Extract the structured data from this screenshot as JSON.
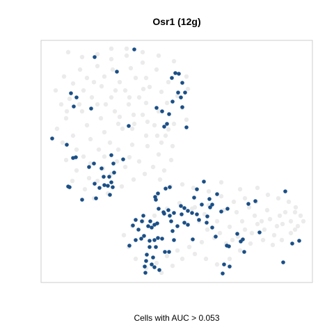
{
  "chart_data": {
    "type": "scatter",
    "title": "Osr1 (12g)",
    "xlabel": "Cells with AUC > 0.053",
    "ylabel": "",
    "colors": {
      "highlight": "#1b4f86",
      "background": "#ebebeb",
      "frame": "#cccccc"
    },
    "series": [
      {
        "name": "",
        "color": "#ebebeb",
        "points": [
          [
            98,
            75
          ],
          [
            118,
            82
          ],
          [
            140,
            78
          ],
          [
            160,
            85
          ],
          [
            182,
            80
          ],
          [
            205,
            90
          ],
          [
            225,
            100
          ],
          [
            210,
            112
          ],
          [
            188,
            98
          ],
          [
            162,
            100
          ],
          [
            140,
            95
          ],
          [
            115,
            100
          ],
          [
            92,
            110
          ],
          [
            80,
            130
          ],
          [
            88,
            150
          ],
          [
            100,
            142
          ],
          [
            120,
            130
          ],
          [
            135,
            118
          ],
          [
            150,
            110
          ],
          [
            172,
            118
          ],
          [
            195,
            112
          ],
          [
            215,
            125
          ],
          [
            200,
            140
          ],
          [
            180,
            130
          ],
          [
            160,
            140
          ],
          [
            140,
            150
          ],
          [
            118,
            160
          ],
          [
            95,
            170
          ],
          [
            82,
            185
          ],
          [
            90,
            205
          ],
          [
            105,
            195
          ],
          [
            125,
            180
          ],
          [
            145,
            170
          ],
          [
            165,
            160
          ],
          [
            185,
            150
          ],
          [
            205,
            165
          ],
          [
            222,
            180
          ],
          [
            210,
            195
          ],
          [
            190,
            185
          ],
          [
            170,
            178
          ],
          [
            150,
            190
          ],
          [
            130,
            200
          ],
          [
            110,
            215
          ],
          [
            95,
            230
          ],
          [
            110,
            245
          ],
          [
            130,
            235
          ],
          [
            150,
            225
          ],
          [
            170,
            215
          ],
          [
            190,
            208
          ],
          [
            212,
            210
          ],
          [
            228,
            222
          ],
          [
            220,
            240
          ],
          [
            200,
            232
          ],
          [
            180,
            240
          ],
          [
            160,
            250
          ],
          [
            140,
            260
          ],
          [
            122,
            272
          ],
          [
            135,
            285
          ],
          [
            155,
            278
          ],
          [
            175,
            268
          ],
          [
            192,
            258
          ],
          [
            208,
            250
          ],
          [
            230,
            258
          ],
          [
            245,
            268
          ],
          [
            262,
            265
          ],
          [
            278,
            270
          ],
          [
            300,
            275
          ],
          [
            318,
            282
          ],
          [
            336,
            290
          ],
          [
            352,
            285
          ],
          [
            368,
            290
          ],
          [
            385,
            280
          ],
          [
            400,
            285
          ],
          [
            415,
            290
          ],
          [
            425,
            298
          ],
          [
            432,
            310
          ],
          [
            428,
            325
          ],
          [
            418,
            335
          ],
          [
            405,
            345
          ],
          [
            392,
            352
          ],
          [
            378,
            345
          ],
          [
            360,
            350
          ],
          [
            342,
            340
          ],
          [
            325,
            350
          ],
          [
            308,
            342
          ],
          [
            290,
            348
          ],
          [
            272,
            355
          ],
          [
            255,
            360
          ],
          [
            240,
            368
          ],
          [
            225,
            378
          ],
          [
            210,
            385
          ],
          [
            195,
            372
          ],
          [
            185,
            355
          ],
          [
            178,
            338
          ],
          [
            190,
            325
          ],
          [
            205,
            318
          ],
          [
            222,
            310
          ],
          [
            240,
            300
          ],
          [
            258,
            292
          ],
          [
            276,
            300
          ],
          [
            294,
            308
          ],
          [
            312,
            318
          ],
          [
            330,
            326
          ],
          [
            348,
            318
          ],
          [
            366,
            310
          ],
          [
            384,
            302
          ],
          [
            402,
            310
          ],
          [
            418,
            318
          ],
          [
            398,
            325
          ],
          [
            380,
            330
          ],
          [
            362,
            335
          ],
          [
            345,
            360
          ],
          [
            330,
            372
          ],
          [
            312,
            380
          ],
          [
            296,
            372
          ],
          [
            280,
            365
          ],
          [
            262,
            372
          ],
          [
            248,
            382
          ],
          [
            232,
            392
          ],
          [
            300,
            295
          ],
          [
            322,
            302
          ],
          [
            340,
            305
          ],
          [
            358,
            298
          ],
          [
            376,
            318
          ],
          [
            394,
            338
          ],
          [
            410,
            305
          ],
          [
            424,
            305
          ],
          [
            370,
            270
          ],
          [
            345,
            272
          ],
          [
            318,
            262
          ],
          [
            240,
            148
          ],
          [
            232,
            132
          ],
          [
            242,
            118
          ],
          [
            255,
            138
          ],
          [
            262,
            155
          ],
          [
            268,
            172
          ],
          [
            250,
            178
          ],
          [
            238,
            195
          ],
          [
            228,
            160
          ],
          [
            210,
            148
          ],
          [
            192,
            165
          ],
          [
            176,
            185
          ],
          [
            158,
            205
          ],
          [
            142,
            215
          ],
          [
            120,
            225
          ],
          [
            104,
            260
          ],
          [
            128,
            256
          ],
          [
            148,
            242
          ],
          [
            168,
            232
          ],
          [
            186,
            226
          ],
          [
            232,
            205
          ],
          [
            248,
            210
          ],
          [
            246,
            230
          ],
          [
            236,
            245
          ],
          [
            105,
            120
          ],
          [
            125,
            112
          ],
          [
            146,
            124
          ],
          [
            166,
            130
          ],
          [
            186,
            140
          ],
          [
            206,
            128
          ],
          [
            96,
            160
          ],
          [
            114,
            150
          ],
          [
            132,
            140
          ],
          [
            152,
            150
          ],
          [
            172,
            168
          ],
          [
            193,
            178
          ],
          [
            212,
            175
          ],
          [
            226,
            195
          ],
          [
            242,
            186
          ],
          [
            160,
            70
          ],
          [
            182,
            70
          ],
          [
            205,
            75
          ],
          [
            228,
            80
          ],
          [
            250,
            88
          ],
          [
            268,
            110
          ],
          [
            270,
            128
          ],
          [
            280,
            298
          ],
          [
            286,
            318
          ],
          [
            298,
            330
          ],
          [
            316,
            335
          ],
          [
            334,
            345
          ],
          [
            352,
            330
          ],
          [
            370,
            322
          ],
          [
            388,
            315
          ],
          [
            406,
            322
          ],
          [
            424,
            330
          ],
          [
            436,
            318
          ]
        ]
      },
      {
        "name": "",
        "color": "#1b4f86",
        "points": [
          [
            136,
            82
          ],
          [
            193,
            71
          ],
          [
            168,
            103
          ],
          [
            252,
            105
          ],
          [
            257,
            106
          ],
          [
            247,
            112
          ],
          [
            262,
            119
          ],
          [
            266,
            133
          ],
          [
            256,
            133
          ],
          [
            260,
            140
          ],
          [
            248,
            146
          ],
          [
            225,
            155
          ],
          [
            243,
            164
          ],
          [
            262,
            154
          ],
          [
            233,
            160
          ],
          [
            236,
            182
          ],
          [
            268,
            183
          ],
          [
            240,
            178
          ],
          [
            102,
            134
          ],
          [
            110,
            140
          ],
          [
            131,
            156
          ],
          [
            106,
            153
          ],
          [
            185,
            181
          ],
          [
            75,
            199
          ],
          [
            96,
            208
          ],
          [
            105,
            227
          ],
          [
            109,
            226
          ],
          [
            135,
            235
          ],
          [
            128,
            240
          ],
          [
            146,
            242
          ],
          [
            163,
            235
          ],
          [
            177,
            229
          ],
          [
            160,
            223
          ],
          [
            164,
            248
          ],
          [
            155,
            267
          ],
          [
            157,
            254
          ],
          [
            150,
            266
          ],
          [
            143,
            270
          ],
          [
            136,
            264
          ],
          [
            160,
            262
          ],
          [
            162,
            269
          ],
          [
            149,
            254
          ],
          [
            158,
            280
          ],
          [
            118,
            287
          ],
          [
            138,
            285
          ],
          [
            100,
            269
          ],
          [
            98,
            268
          ],
          [
            244,
            269
          ],
          [
            238,
            271
          ],
          [
            227,
            278
          ],
          [
            223,
            283
          ],
          [
            224,
            287
          ],
          [
            293,
            261
          ],
          [
            283,
            272
          ],
          [
            301,
            286
          ],
          [
            279,
            284
          ],
          [
            312,
            279
          ],
          [
            290,
            294
          ],
          [
            235,
            305
          ],
          [
            206,
            310
          ],
          [
            228,
            300
          ],
          [
            195,
            316
          ],
          [
            191,
            324
          ],
          [
            204,
            318
          ],
          [
            213,
            325
          ],
          [
            216,
            318
          ],
          [
            222,
            323
          ],
          [
            226,
            321
          ],
          [
            236,
            307
          ],
          [
            244,
            310
          ],
          [
            250,
            306
          ],
          [
            261,
            308
          ],
          [
            265,
            299
          ],
          [
            270,
            303
          ],
          [
            276,
            306
          ],
          [
            283,
            308
          ],
          [
            286,
            316
          ],
          [
            298,
            311
          ],
          [
            302,
            298
          ],
          [
            305,
            294
          ],
          [
            318,
            304
          ],
          [
            327,
            300
          ],
          [
            265,
            320
          ],
          [
            270,
            323
          ],
          [
            255,
            325
          ],
          [
            248,
            332
          ],
          [
            246,
            318
          ],
          [
            242,
            302
          ],
          [
            260,
            296
          ],
          [
            199,
            330
          ],
          [
            195,
            345
          ],
          [
            203,
            343
          ],
          [
            215,
            346
          ],
          [
            207,
            339
          ],
          [
            218,
            327
          ],
          [
            227,
            342
          ],
          [
            222,
            345
          ],
          [
            233,
            343
          ],
          [
            215,
            355
          ],
          [
            224,
            355
          ],
          [
            211,
            366
          ],
          [
            220,
            370
          ],
          [
            210,
            375
          ],
          [
            218,
            380
          ],
          [
            208,
            383
          ],
          [
            222,
            384
          ],
          [
            209,
            392
          ],
          [
            229,
            388
          ],
          [
            186,
            353
          ],
          [
            250,
            345
          ],
          [
            277,
            344
          ],
          [
            297,
            320
          ],
          [
            305,
            327
          ],
          [
            310,
            340
          ],
          [
            326,
            353
          ],
          [
            329,
            354
          ],
          [
            349,
            344
          ],
          [
            341,
            336
          ],
          [
            346,
            347
          ],
          [
            351,
            362
          ],
          [
            357,
            293
          ],
          [
            367,
            289
          ],
          [
            373,
            334
          ],
          [
            410,
            275
          ],
          [
            430,
            346
          ],
          [
            420,
            350
          ],
          [
            407,
            377
          ],
          [
            320,
            393
          ],
          [
            330,
            383
          ],
          [
            322,
            380
          ],
          [
            237,
            362
          ],
          [
            243,
            362
          ]
        ]
      }
    ]
  }
}
